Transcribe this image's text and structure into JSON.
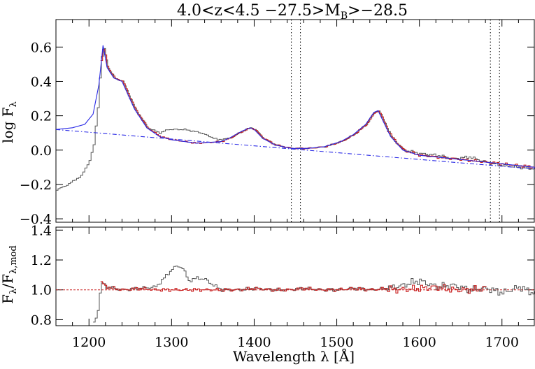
{
  "chart_data": [
    {
      "type": "line",
      "title": "4.0<z<4.5 −27.5>M",
      "title_sub": "B",
      "title_tail": ">−28.5",
      "ylabel": "log F",
      "ylabel_sub": "λ",
      "xlim": [
        1160,
        1740
      ],
      "ylim": [
        -0.42,
        0.76
      ],
      "xticks": [
        1200,
        1300,
        1400,
        1500,
        1600,
        1700
      ],
      "xtick_labels": [
        "1200",
        "1300",
        "1400",
        "1500",
        "1600",
        "1700"
      ],
      "yticks": [
        -0.4,
        -0.2,
        0.0,
        0.2,
        0.4,
        0.6
      ],
      "ytick_labels": [
        "−0.4",
        "−0.2",
        "0.0",
        "0.2",
        "0.4",
        "0.6"
      ],
      "vlines": [
        1445,
        1456,
        1686,
        1697
      ],
      "series": [
        {
          "role": "data",
          "color": "#555555",
          "x": [
            1160,
            1170,
            1180,
            1190,
            1200,
            1205,
            1210,
            1214,
            1217,
            1222,
            1230,
            1240,
            1255,
            1270,
            1285,
            1295,
            1305,
            1315,
            1325,
            1335,
            1345,
            1355,
            1370,
            1385,
            1395,
            1400,
            1410,
            1425,
            1445,
            1465,
            1485,
            1505,
            1520,
            1535,
            1545,
            1550,
            1555,
            1565,
            1580,
            1600,
            1620,
            1640,
            1660,
            1680,
            1700,
            1720,
            1740
          ],
          "values": [
            -0.23,
            -0.21,
            -0.18,
            -0.15,
            -0.06,
            0.03,
            0.25,
            0.52,
            0.6,
            0.48,
            0.42,
            0.4,
            0.24,
            0.13,
            0.1,
            0.12,
            0.12,
            0.12,
            0.11,
            0.1,
            0.08,
            0.06,
            0.07,
            0.11,
            0.13,
            0.12,
            0.07,
            0.03,
            0.01,
            0.01,
            0.02,
            0.05,
            0.09,
            0.15,
            0.22,
            0.23,
            0.18,
            0.08,
            0.0,
            -0.02,
            -0.03,
            -0.05,
            -0.04,
            -0.07,
            -0.09,
            -0.1,
            -0.11
          ]
        },
        {
          "role": "fit",
          "color": "#c81e1e",
          "x": [
            1214,
            1217,
            1222,
            1230,
            1240,
            1255,
            1270,
            1285,
            1300,
            1330,
            1360,
            1370,
            1385,
            1395,
            1400,
            1410,
            1425,
            1445,
            1465,
            1485,
            1505,
            1520,
            1535,
            1545,
            1550,
            1555,
            1565,
            1580,
            1600,
            1620,
            1640,
            1660,
            1680,
            1700,
            1720,
            1740
          ],
          "values": [
            0.52,
            0.6,
            0.48,
            0.42,
            0.4,
            0.24,
            0.13,
            0.08,
            0.06,
            0.04,
            0.05,
            0.07,
            0.11,
            0.13,
            0.12,
            0.07,
            0.03,
            0.01,
            0.01,
            0.02,
            0.05,
            0.09,
            0.15,
            0.22,
            0.23,
            0.18,
            0.08,
            0.0,
            -0.03,
            -0.04,
            -0.05,
            -0.06,
            -0.07,
            -0.08,
            -0.09,
            -0.1
          ]
        },
        {
          "role": "model",
          "color": "#2a2ae6",
          "x": [
            1160,
            1180,
            1195,
            1205,
            1212,
            1217,
            1222,
            1230,
            1240,
            1255,
            1270,
            1285,
            1300,
            1330,
            1360,
            1370,
            1385,
            1395,
            1400,
            1410,
            1425,
            1445,
            1465,
            1485,
            1505,
            1520,
            1535,
            1545,
            1550,
            1555,
            1565,
            1580,
            1600,
            1620,
            1640,
            1660,
            1680,
            1700,
            1720,
            1740
          ],
          "values": [
            0.12,
            0.13,
            0.15,
            0.21,
            0.38,
            0.61,
            0.48,
            0.42,
            0.4,
            0.24,
            0.13,
            0.08,
            0.06,
            0.04,
            0.05,
            0.07,
            0.11,
            0.13,
            0.12,
            0.07,
            0.03,
            0.01,
            0.01,
            0.02,
            0.05,
            0.09,
            0.15,
            0.22,
            0.23,
            0.18,
            0.08,
            0.0,
            -0.03,
            -0.04,
            -0.05,
            -0.06,
            -0.07,
            -0.08,
            -0.09,
            -0.1
          ]
        },
        {
          "role": "continuum",
          "color": "#2a2ae6",
          "dash": "dash-dot",
          "x": [
            1160,
            1740
          ],
          "values": [
            0.12,
            -0.11
          ]
        }
      ]
    },
    {
      "type": "line",
      "ylabel": "F",
      "ylabel_sub": "λ",
      "ylabel_mid": "/F",
      "ylabel_sub2": "λ,mod",
      "xlabel": "Wavelength λ [Å]",
      "xlim": [
        1160,
        1740
      ],
      "ylim": [
        0.76,
        1.42
      ],
      "xticks": [
        1200,
        1300,
        1400,
        1500,
        1600,
        1700
      ],
      "xtick_labels": [
        "1200",
        "1300",
        "1400",
        "1500",
        "1600",
        "1700"
      ],
      "yticks": [
        0.8,
        1.0,
        1.2,
        1.4
      ],
      "ytick_labels": [
        "0.8",
        "1.0",
        "1.2",
        "1.4"
      ],
      "reference_line": 1.0,
      "series": [
        {
          "role": "ratio-data",
          "color": "#555555",
          "x": [
            1205,
            1208,
            1210,
            1212,
            1214,
            1220,
            1240,
            1260,
            1280,
            1290,
            1300,
            1306,
            1312,
            1320,
            1330,
            1340,
            1350,
            1360,
            1380,
            1400,
            1420,
            1440,
            1460,
            1480,
            1500,
            1520,
            1540,
            1560,
            1580,
            1590,
            1600,
            1620,
            1640,
            1660,
            1680,
            1700,
            1720,
            1740
          ],
          "values": [
            0.78,
            0.82,
            0.87,
            0.95,
            1.05,
            1.02,
            1.0,
            1.01,
            1.02,
            1.08,
            1.14,
            1.16,
            1.15,
            1.06,
            1.08,
            1.07,
            1.03,
            1.0,
            1.0,
            1.01,
            1.0,
            1.0,
            1.01,
            1.0,
            1.0,
            1.01,
            1.0,
            1.01,
            1.03,
            1.05,
            1.06,
            1.02,
            1.03,
            1.0,
            1.01,
            0.98,
            1.02,
            0.97
          ]
        },
        {
          "role": "ratio-fit",
          "color": "#c81e1e",
          "x": [
            1214,
            1220,
            1240,
            1260,
            1280,
            1360,
            1380,
            1400,
            1420,
            1440,
            1460,
            1480,
            1500,
            1520,
            1540,
            1560,
            1570,
            1600,
            1620,
            1640,
            1660,
            1680
          ],
          "values": [
            1.05,
            1.02,
            1.0,
            1.01,
            1.0,
            1.0,
            1.0,
            1.01,
            1.0,
            1.0,
            1.01,
            1.0,
            1.0,
            1.01,
            1.0,
            1.01,
            1.0,
            1.01,
            1.02,
            1.0,
            1.0,
            1.01
          ]
        }
      ]
    }
  ]
}
